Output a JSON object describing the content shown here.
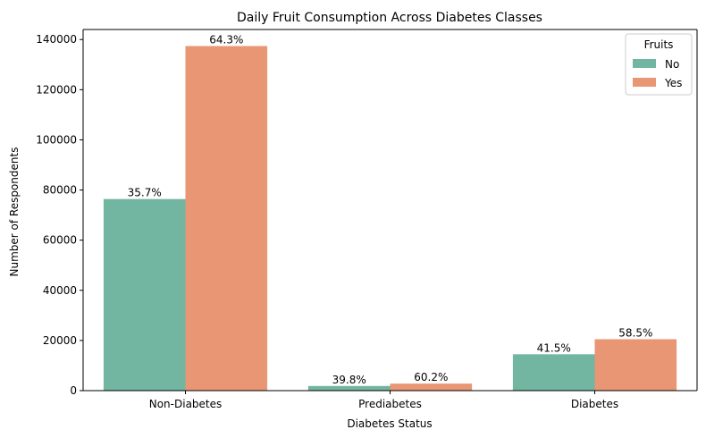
{
  "chart_data": {
    "type": "bar",
    "title": "Daily Fruit Consumption Across Diabetes Classes",
    "xlabel": "Diabetes Status",
    "ylabel": "Number of Respondents",
    "categories": [
      "Non-Diabetes",
      "Prediabetes",
      "Diabetes"
    ],
    "series": [
      {
        "name": "No",
        "color": "#72b6a1",
        "values": [
          76400,
          1850,
          14500
        ],
        "labels": [
          "35.7%",
          "39.8%",
          "41.5%"
        ]
      },
      {
        "name": "Yes",
        "color": "#e99675",
        "values": [
          137400,
          2800,
          20500
        ],
        "labels": [
          "64.3%",
          "60.2%",
          "58.5%"
        ]
      }
    ],
    "ylim": [
      0,
      144000
    ],
    "yticks": [
      0,
      20000,
      40000,
      60000,
      80000,
      100000,
      120000,
      140000
    ],
    "legend": {
      "title": "Fruits",
      "position": "top-right"
    },
    "grid": false
  }
}
